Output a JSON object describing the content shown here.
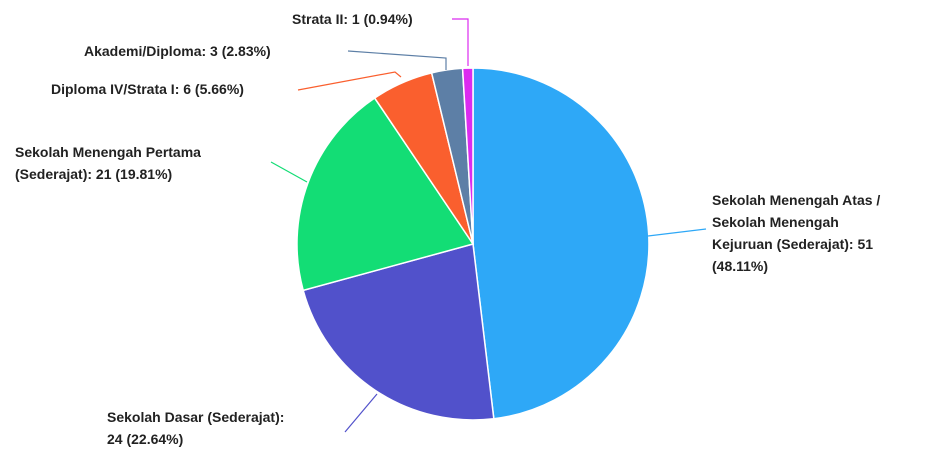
{
  "chart_data": {
    "type": "pie",
    "title": "",
    "slices": [
      {
        "label": "Sekolah Menengah Atas / Sekolah Menengah Kejuruan (Sederajat)",
        "value": 51,
        "percent": "48.11%",
        "color": "#2EA8F7",
        "label_lines": [
          "Sekolah Menengah Atas /",
          "Sekolah Menengah",
          "Kejuruan (Sederajat): 51",
          "(48.11%)"
        ]
      },
      {
        "label": "Sekolah Dasar (Sederajat)",
        "value": 24,
        "percent": "22.64%",
        "color": "#5151CB",
        "label_lines": [
          "Sekolah Dasar (Sederajat):",
          "24 (22.64%)"
        ]
      },
      {
        "label": "Sekolah Menengah Pertama (Sederajat)",
        "value": 21,
        "percent": "19.81%",
        "color": "#13DD75",
        "label_lines": [
          "Sekolah Menengah Pertama",
          "(Sederajat): 21 (19.81%)"
        ]
      },
      {
        "label": "Diploma IV/Strata I",
        "value": 6,
        "percent": "5.66%",
        "color": "#FA5F2E",
        "label_lines": [
          "Diploma IV/Strata I: 6 (5.66%)"
        ]
      },
      {
        "label": "Akademi/Diploma",
        "value": 3,
        "percent": "2.83%",
        "color": "#5D7FA6",
        "label_lines": [
          "Akademi/Diploma: 3 (2.83%)"
        ]
      },
      {
        "label": "Strata II",
        "value": 1,
        "percent": "0.94%",
        "color": "#DB2BEF",
        "label_lines": [
          "Strata II: 1 (0.94%)"
        ]
      }
    ]
  }
}
